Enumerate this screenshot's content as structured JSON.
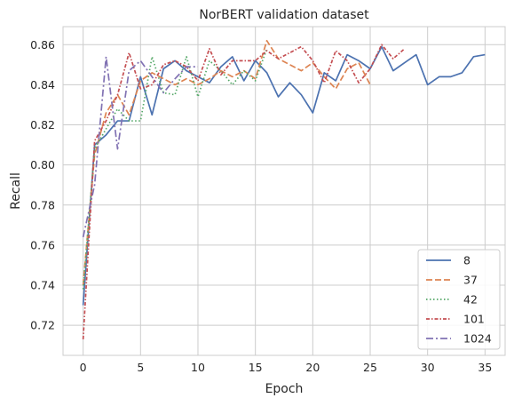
{
  "chart_data": {
    "type": "line",
    "title": "NorBERT validation dataset",
    "xlabel": "Epoch",
    "ylabel": "Recall",
    "xlim": [
      -1.75,
      36.75
    ],
    "ylim": [
      0.705,
      0.869
    ],
    "xticks": [
      0,
      5,
      10,
      15,
      20,
      25,
      30,
      35
    ],
    "yticks": [
      0.72,
      0.74,
      0.76,
      0.78,
      0.8,
      0.82,
      0.84,
      0.86
    ],
    "ytick_labels": [
      "0.72",
      "0.74",
      "0.76",
      "0.78",
      "0.80",
      "0.82",
      "0.84",
      "0.86"
    ],
    "grid": true,
    "legend_position": "lower-right",
    "series": [
      {
        "name": "8",
        "color": "#4c72b0",
        "dash": "solid",
        "values": [
          0.73,
          0.81,
          0.815,
          0.822,
          0.822,
          0.844,
          0.825,
          0.848,
          0.852,
          0.847,
          0.844,
          0.841,
          0.849,
          0.854,
          0.842,
          0.852,
          0.846,
          0.834,
          0.841,
          0.835,
          0.826,
          0.846,
          0.842,
          0.855,
          0.852,
          0.848,
          0.859,
          0.847,
          0.851,
          0.855,
          0.84,
          0.844,
          0.844,
          0.846,
          0.854,
          0.855
        ]
      },
      {
        "name": "37",
        "color": "#dd8452",
        "dash": "dashed",
        "values": [
          0.74,
          0.805,
          0.826,
          0.835,
          0.825,
          0.842,
          0.846,
          0.843,
          0.84,
          0.843,
          0.84,
          0.843,
          0.847,
          0.844,
          0.847,
          0.843,
          0.862,
          0.853,
          0.85,
          0.847,
          0.851,
          0.844,
          0.838,
          0.848,
          0.851,
          0.84
        ]
      },
      {
        "name": "42",
        "color": "#55a868",
        "dash": "dotted",
        "values": [
          0.738,
          0.808,
          0.818,
          0.828,
          0.822,
          0.822,
          0.854,
          0.836,
          0.835,
          0.854,
          0.834,
          0.852,
          0.847,
          0.84,
          0.847,
          0.842,
          0.858
        ]
      },
      {
        "name": "101",
        "color": "#c44e52",
        "dash": "dashdot2",
        "values": [
          0.713,
          0.812,
          0.822,
          0.835,
          0.856,
          0.838,
          0.84,
          0.85,
          0.852,
          0.849,
          0.842,
          0.858,
          0.845,
          0.852,
          0.852,
          0.852,
          0.857,
          0.853,
          0.856,
          0.859,
          0.852,
          0.841,
          0.857,
          0.852,
          0.841,
          0.848,
          0.86,
          0.853,
          0.858
        ]
      },
      {
        "name": "1024",
        "color": "#8172b3",
        "dash": "dashdot",
        "values": [
          0.764,
          0.79,
          0.854,
          0.808,
          0.847,
          0.852,
          0.844,
          0.836,
          0.843,
          0.849,
          0.849
        ]
      }
    ]
  }
}
